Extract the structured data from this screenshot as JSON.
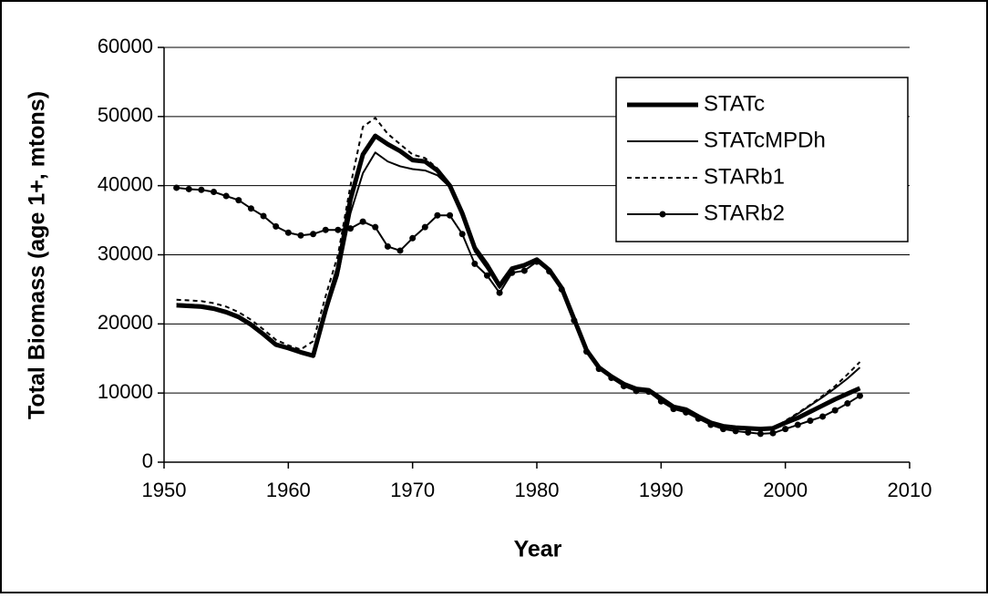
{
  "chart_data": {
    "type": "line",
    "x": [
      1951,
      1952,
      1953,
      1954,
      1955,
      1956,
      1957,
      1958,
      1959,
      1960,
      1961,
      1962,
      1963,
      1964,
      1965,
      1966,
      1967,
      1968,
      1969,
      1970,
      1971,
      1972,
      1973,
      1974,
      1975,
      1976,
      1977,
      1978,
      1979,
      1980,
      1981,
      1982,
      1983,
      1984,
      1985,
      1986,
      1987,
      1988,
      1989,
      1990,
      1991,
      1992,
      1993,
      1994,
      1995,
      1996,
      1997,
      1998,
      1999,
      2000,
      2001,
      2002,
      2003,
      2004,
      2005,
      2006
    ],
    "xlabel": "Year",
    "ylabel": "Total Biomass (age 1+, mtons)",
    "xlim": [
      1950,
      2010
    ],
    "xticks": [
      1950,
      1960,
      1970,
      1980,
      1990,
      2000,
      2010
    ],
    "ylim": [
      0,
      60000
    ],
    "yticks": [
      0,
      10000,
      20000,
      30000,
      40000,
      50000,
      60000
    ],
    "grid": true,
    "legend": "upper right",
    "series": [
      {
        "name": "STATc",
        "color": "#000000",
        "line_width": 5,
        "line_style": "solid",
        "values": [
          22700,
          22600,
          22500,
          22200,
          21700,
          21000,
          19900,
          18500,
          17000,
          16500,
          15900,
          15400,
          22000,
          28000,
          38000,
          44500,
          47200,
          46000,
          45000,
          43700,
          43500,
          42200,
          40000,
          36000,
          31000,
          28500,
          25500,
          28000,
          28500,
          29300,
          27800,
          25200,
          20700,
          16200,
          13700,
          12400,
          11300,
          10600,
          10400,
          9200,
          8000,
          7600,
          6600,
          5700,
          5200,
          5000,
          4900,
          4800,
          4900,
          5700,
          6400,
          7300,
          8200,
          9100,
          9900,
          10700
        ]
      },
      {
        "name": "STATcMPDh",
        "color": "#000000",
        "line_width": 2,
        "line_style": "solid",
        "values": [
          22900,
          22800,
          22700,
          22400,
          21900,
          21200,
          20100,
          18700,
          17200,
          16600,
          16000,
          15600,
          21500,
          27000,
          36000,
          41800,
          44800,
          43500,
          42800,
          42400,
          42200,
          41500,
          39800,
          35500,
          30500,
          28000,
          25200,
          27800,
          28400,
          29200,
          27700,
          25100,
          20600,
          16100,
          13600,
          12300,
          11200,
          10500,
          10300,
          9100,
          7900,
          7500,
          6500,
          5600,
          5100,
          4900,
          4800,
          4700,
          4800,
          5900,
          7000,
          8200,
          9400,
          10700,
          12100,
          13700
        ]
      },
      {
        "name": "STARb1",
        "color": "#000000",
        "line_width": 2,
        "line_style": "dashed",
        "values": [
          23500,
          23400,
          23300,
          23000,
          22500,
          21700,
          20600,
          19200,
          17700,
          16900,
          16300,
          17500,
          24000,
          30000,
          40000,
          48500,
          49800,
          47500,
          46000,
          44500,
          44000,
          42500,
          40200,
          36000,
          31000,
          28300,
          25300,
          27900,
          28400,
          29200,
          27700,
          25100,
          20600,
          16100,
          13600,
          12300,
          11200,
          10500,
          10300,
          9100,
          7900,
          7500,
          6500,
          5600,
          5100,
          4900,
          4800,
          4700,
          4800,
          6000,
          7100,
          8300,
          9600,
          11000,
          12700,
          14500
        ]
      },
      {
        "name": "STARb2",
        "color": "#000000",
        "line_width": 2,
        "line_style": "solid",
        "marker": "circle",
        "values": [
          39700,
          39500,
          39400,
          39100,
          38500,
          37900,
          36700,
          35600,
          34100,
          33200,
          32800,
          33000,
          33600,
          33600,
          33800,
          34800,
          34000,
          31200,
          30600,
          32400,
          34000,
          35700,
          35700,
          33000,
          28700,
          27000,
          24500,
          27400,
          27700,
          29000,
          27600,
          25000,
          20500,
          16000,
          13500,
          12200,
          11000,
          10300,
          10200,
          8800,
          7700,
          7200,
          6300,
          5400,
          4800,
          4500,
          4300,
          4100,
          4200,
          4800,
          5400,
          6000,
          6600,
          7500,
          8500,
          9600
        ]
      }
    ]
  }
}
